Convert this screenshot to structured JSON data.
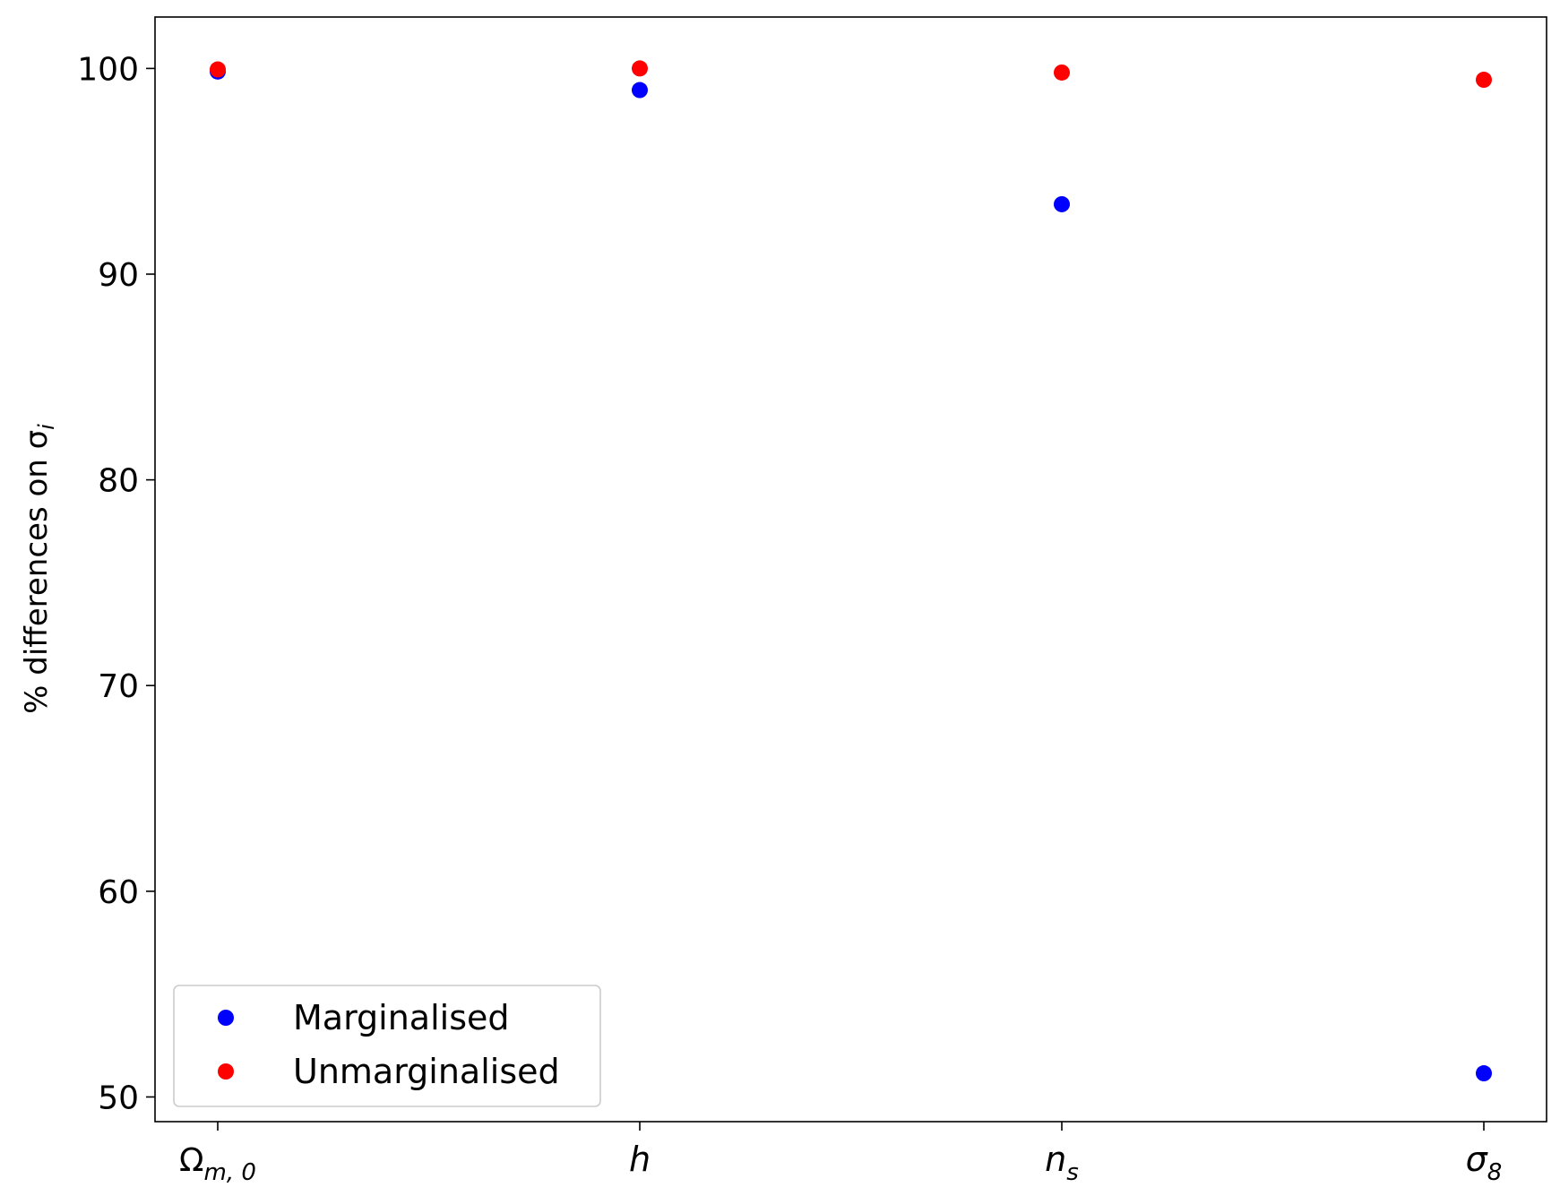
{
  "chart_data": {
    "type": "scatter",
    "title": "",
    "xlabel": "",
    "ylabel": "% differences on σ",
    "ylabel_subscript": "i",
    "ylim": [
      48.8,
      102.5
    ],
    "yticks": [
      50,
      60,
      70,
      80,
      90,
      100
    ],
    "categories": [
      {
        "base": "Ω",
        "sub": "m, 0",
        "sub_upright_chars": "0"
      },
      {
        "base": "h",
        "sub": ""
      },
      {
        "base": "n",
        "sub": "s"
      },
      {
        "base": "σ",
        "sub": "8"
      }
    ],
    "series": [
      {
        "name": "Marginalised",
        "color": "#0000ff",
        "values": [
          99.85,
          98.95,
          93.4,
          51.15
        ]
      },
      {
        "name": "Unmarginalised",
        "color": "#ff0000",
        "values": [
          99.95,
          100.0,
          99.8,
          99.45
        ]
      }
    ],
    "legend_position": "lower-left",
    "grid": false
  }
}
